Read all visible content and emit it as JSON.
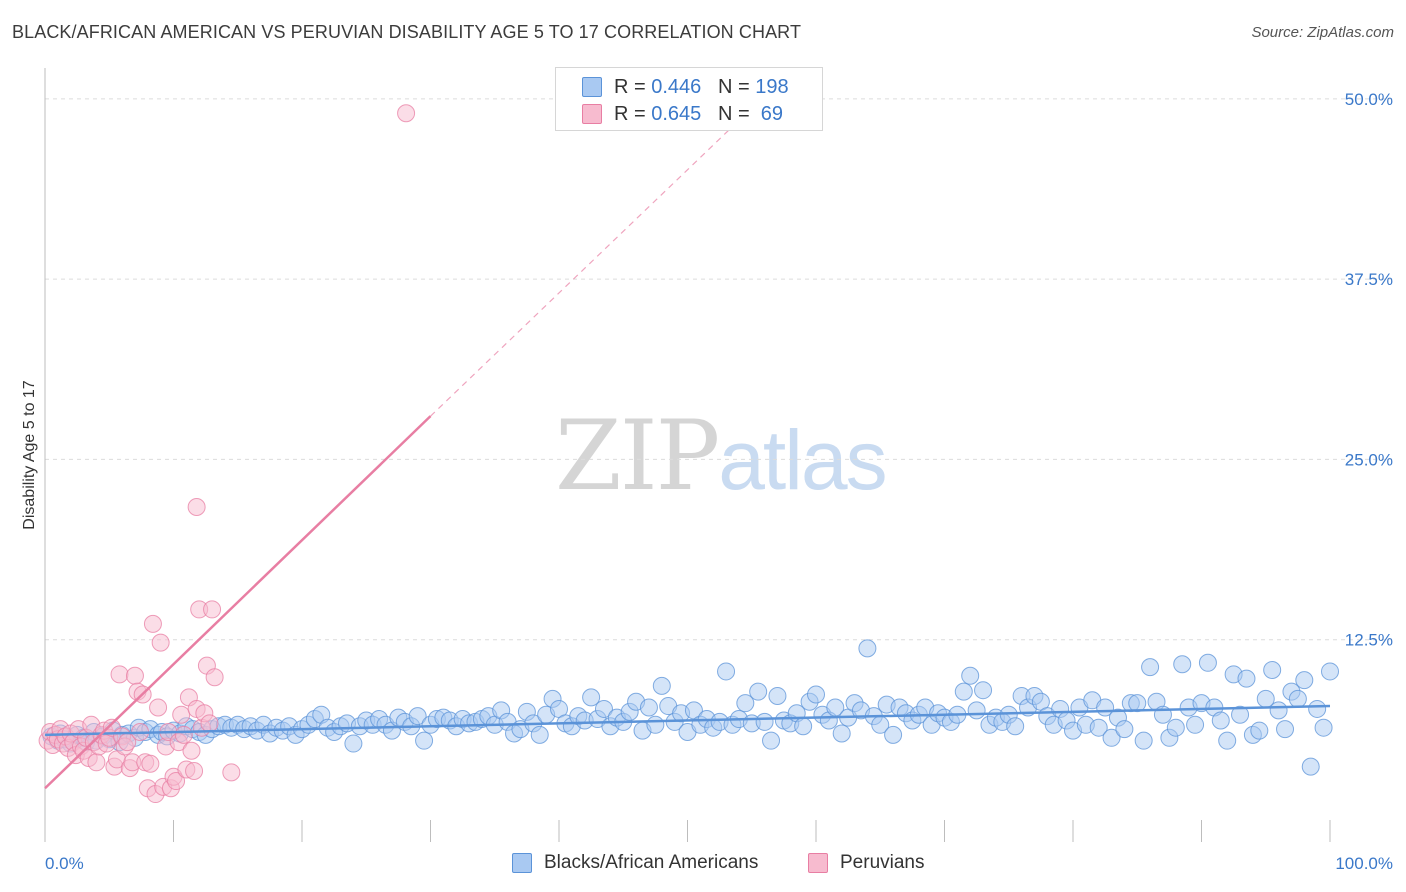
{
  "title": "BLACK/AFRICAN AMERICAN VS PERUVIAN DISABILITY AGE 5 TO 17 CORRELATION CHART",
  "source": "Source: ZipAtlas.com",
  "watermark": {
    "zip": "ZIP",
    "atlas": "atlas"
  },
  "legend": {
    "rows": [
      {
        "r_label": "R = ",
        "r_value": "0.446",
        "n_label": "N = ",
        "n_value": "198",
        "color": "#a9c9f2",
        "border": "#5b93d8"
      },
      {
        "r_label": "R = ",
        "r_value": "0.645",
        "n_label": "N = ",
        "n_value": " 69",
        "color": "#f7bbcf",
        "border": "#e87ea3"
      }
    ]
  },
  "bottom_legend": [
    {
      "label": "Blacks/African Americans",
      "color": "#a9c9f2",
      "border": "#5b93d8"
    },
    {
      "label": "Peruvians",
      "color": "#f7bbcf",
      "border": "#e87ea3"
    }
  ],
  "chart_data": {
    "type": "scatter",
    "title": "BLACK/AFRICAN AMERICAN VS PERUVIAN DISABILITY AGE 5 TO 17 CORRELATION CHART",
    "xlabel": "",
    "ylabel": "Disability Age 5 to 17",
    "xlim": [
      0,
      100
    ],
    "ylim": [
      0,
      52
    ],
    "x_tick_labels": [
      "0.0%",
      "100.0%"
    ],
    "y_ticks": [
      12.5,
      25.0,
      37.5,
      50.0
    ],
    "y_tick_labels": [
      "12.5%",
      "25.0%",
      "37.5%",
      "50.0%"
    ],
    "grid": true,
    "series": [
      {
        "name": "Blacks/African Americans",
        "color": "#5b93d8",
        "fill": "#a9c9f2",
        "trend": {
          "x": [
            0,
            100
          ],
          "y": [
            5.9,
            7.9
          ],
          "style": "solid"
        },
        "points": [
          [
            0.5,
            5.8
          ],
          [
            1,
            5.5
          ],
          [
            1.2,
            6.0
          ],
          [
            1.5,
            5.6
          ],
          [
            2,
            5.3
          ],
          [
            2.5,
            5.9
          ],
          [
            3,
            5.7
          ],
          [
            3.2,
            5.4
          ],
          [
            3.8,
            6.1
          ],
          [
            4,
            5.5
          ],
          [
            4.5,
            5.8
          ],
          [
            5,
            5.6
          ],
          [
            5.3,
            6.2
          ],
          [
            5.8,
            5.4
          ],
          [
            6,
            5.9
          ],
          [
            6.5,
            6.0
          ],
          [
            7,
            5.7
          ],
          [
            7.3,
            6.4
          ],
          [
            7.8,
            6.1
          ],
          [
            8.2,
            6.3
          ],
          [
            8.8,
            5.9
          ],
          [
            9.1,
            6.1
          ],
          [
            9.5,
            5.8
          ],
          [
            10,
            6.2
          ],
          [
            10.5,
            6.0
          ],
          [
            11,
            6.5
          ],
          [
            11.5,
            6.3
          ],
          [
            12,
            6.1
          ],
          [
            12.5,
            5.9
          ],
          [
            13,
            6.3
          ],
          [
            13.5,
            6.5
          ],
          [
            14,
            6.6
          ],
          [
            14.5,
            6.4
          ],
          [
            15,
            6.6
          ],
          [
            15.5,
            6.3
          ],
          [
            16,
            6.5
          ],
          [
            16.5,
            6.2
          ],
          [
            17,
            6.6
          ],
          [
            17.5,
            6.0
          ],
          [
            18,
            6.4
          ],
          [
            18.5,
            6.2
          ],
          [
            19,
            6.5
          ],
          [
            19.5,
            5.9
          ],
          [
            20,
            6.3
          ],
          [
            20.5,
            6.6
          ],
          [
            21,
            7.0
          ],
          [
            21.5,
            7.3
          ],
          [
            22,
            6.4
          ],
          [
            22.5,
            6.1
          ],
          [
            23,
            6.5
          ],
          [
            23.5,
            6.7
          ],
          [
            24,
            5.3
          ],
          [
            24.5,
            6.5
          ],
          [
            25,
            6.9
          ],
          [
            25.5,
            6.6
          ],
          [
            26,
            7.0
          ],
          [
            26.5,
            6.6
          ],
          [
            27,
            6.2
          ],
          [
            27.5,
            7.1
          ],
          [
            28,
            6.8
          ],
          [
            28.5,
            6.5
          ],
          [
            29,
            7.2
          ],
          [
            29.5,
            5.5
          ],
          [
            30,
            6.6
          ],
          [
            30.5,
            7.0
          ],
          [
            31,
            7.1
          ],
          [
            31.5,
            6.9
          ],
          [
            32,
            6.5
          ],
          [
            32.5,
            7.0
          ],
          [
            33,
            6.7
          ],
          [
            33.5,
            6.8
          ],
          [
            34,
            7.0
          ],
          [
            34.5,
            7.2
          ],
          [
            35,
            6.6
          ],
          [
            35.5,
            7.6
          ],
          [
            36,
            6.8
          ],
          [
            36.5,
            6.0
          ],
          [
            37,
            6.3
          ],
          [
            37.5,
            7.5
          ],
          [
            38,
            6.7
          ],
          [
            38.5,
            5.9
          ],
          [
            39,
            7.3
          ],
          [
            39.5,
            8.4
          ],
          [
            40,
            7.7
          ],
          [
            40.5,
            6.7
          ],
          [
            41,
            6.5
          ],
          [
            41.5,
            7.2
          ],
          [
            42,
            6.9
          ],
          [
            42.5,
            8.5
          ],
          [
            43,
            7.0
          ],
          [
            43.5,
            7.7
          ],
          [
            44,
            6.5
          ],
          [
            44.5,
            7.1
          ],
          [
            45,
            6.8
          ],
          [
            45.5,
            7.5
          ],
          [
            46,
            8.2
          ],
          [
            46.5,
            6.2
          ],
          [
            47,
            7.8
          ],
          [
            47.5,
            6.6
          ],
          [
            48,
            9.3
          ],
          [
            48.5,
            7.9
          ],
          [
            49,
            6.8
          ],
          [
            49.5,
            7.4
          ],
          [
            50,
            6.1
          ],
          [
            50.5,
            7.6
          ],
          [
            51,
            6.6
          ],
          [
            51.5,
            7.0
          ],
          [
            52,
            6.4
          ],
          [
            52.5,
            6.8
          ],
          [
            53,
            10.3
          ],
          [
            53.5,
            6.6
          ],
          [
            54,
            7.0
          ],
          [
            54.5,
            8.1
          ],
          [
            55,
            6.7
          ],
          [
            55.5,
            8.9
          ],
          [
            56,
            6.8
          ],
          [
            56.5,
            5.5
          ],
          [
            57,
            8.6
          ],
          [
            57.5,
            6.9
          ],
          [
            58,
            6.7
          ],
          [
            58.5,
            7.4
          ],
          [
            59,
            6.5
          ],
          [
            59.5,
            8.2
          ],
          [
            60,
            8.7
          ],
          [
            60.5,
            7.3
          ],
          [
            61,
            6.9
          ],
          [
            61.5,
            7.8
          ],
          [
            62,
            6.0
          ],
          [
            62.5,
            7.1
          ],
          [
            63,
            8.1
          ],
          [
            63.5,
            7.6
          ],
          [
            64,
            11.9
          ],
          [
            64.5,
            7.2
          ],
          [
            65,
            6.6
          ],
          [
            65.5,
            8.0
          ],
          [
            66,
            5.9
          ],
          [
            66.5,
            7.8
          ],
          [
            67,
            7.4
          ],
          [
            67.5,
            6.9
          ],
          [
            68,
            7.3
          ],
          [
            68.5,
            7.8
          ],
          [
            69,
            6.6
          ],
          [
            69.5,
            7.4
          ],
          [
            70,
            7.1
          ],
          [
            70.5,
            6.8
          ],
          [
            71,
            7.3
          ],
          [
            71.5,
            8.9
          ],
          [
            72,
            10.0
          ],
          [
            72.5,
            7.6
          ],
          [
            73,
            9.0
          ],
          [
            73.5,
            6.6
          ],
          [
            74,
            7.1
          ],
          [
            74.5,
            6.8
          ],
          [
            75,
            7.3
          ],
          [
            75.5,
            6.5
          ],
          [
            76,
            8.6
          ],
          [
            76.5,
            7.8
          ],
          [
            77,
            8.6
          ],
          [
            77.5,
            8.2
          ],
          [
            78,
            7.2
          ],
          [
            78.5,
            6.6
          ],
          [
            79,
            7.7
          ],
          [
            79.5,
            6.9
          ],
          [
            80,
            6.2
          ],
          [
            80.5,
            7.8
          ],
          [
            81,
            6.6
          ],
          [
            81.5,
            8.3
          ],
          [
            82,
            6.4
          ],
          [
            82.5,
            7.8
          ],
          [
            83,
            5.7
          ],
          [
            83.5,
            7.1
          ],
          [
            84,
            6.3
          ],
          [
            84.5,
            8.1
          ],
          [
            85,
            8.1
          ],
          [
            85.5,
            5.5
          ],
          [
            86,
            10.6
          ],
          [
            86.5,
            8.2
          ],
          [
            87,
            7.3
          ],
          [
            87.5,
            5.7
          ],
          [
            88,
            6.4
          ],
          [
            88.5,
            10.8
          ],
          [
            89,
            7.8
          ],
          [
            89.5,
            6.6
          ],
          [
            90,
            8.1
          ],
          [
            90.5,
            10.9
          ],
          [
            91,
            7.8
          ],
          [
            91.5,
            6.9
          ],
          [
            92,
            5.5
          ],
          [
            92.5,
            10.1
          ],
          [
            93,
            7.3
          ],
          [
            93.5,
            9.8
          ],
          [
            94,
            5.9
          ],
          [
            94.5,
            6.2
          ],
          [
            95,
            8.4
          ],
          [
            95.5,
            10.4
          ],
          [
            96,
            7.6
          ],
          [
            96.5,
            6.3
          ],
          [
            97,
            8.9
          ],
          [
            97.5,
            8.4
          ],
          [
            98,
            9.7
          ],
          [
            98.5,
            3.7
          ],
          [
            99,
            7.7
          ],
          [
            99.5,
            6.4
          ],
          [
            100,
            10.3
          ]
        ]
      },
      {
        "name": "Peruvians",
        "color": "#e87ea3",
        "fill": "#f7bbcf",
        "trend": {
          "x": [
            0,
            30
          ],
          "y": [
            2.2,
            28.0
          ],
          "style": "solid",
          "extend_to": [
            54,
            48.5
          ],
          "extend_style": "dashed"
        },
        "points": [
          [
            0.2,
            5.5
          ],
          [
            0.4,
            6.1
          ],
          [
            0.6,
            5.2
          ],
          [
            0.8,
            5.9
          ],
          [
            1,
            5.6
          ],
          [
            1.2,
            6.3
          ],
          [
            1.4,
            5.3
          ],
          [
            1.6,
            5.8
          ],
          [
            1.8,
            5.0
          ],
          [
            2,
            6.0
          ],
          [
            2.2,
            5.4
          ],
          [
            2.4,
            4.5
          ],
          [
            2.6,
            6.3
          ],
          [
            2.8,
            5.1
          ],
          [
            3,
            4.8
          ],
          [
            3.2,
            5.7
          ],
          [
            3.4,
            4.3
          ],
          [
            3.6,
            6.6
          ],
          [
            3.8,
            5.4
          ],
          [
            4,
            4.0
          ],
          [
            4.2,
            5.1
          ],
          [
            4.4,
            5.9
          ],
          [
            4.6,
            6.2
          ],
          [
            4.8,
            5.3
          ],
          [
            5,
            5.7
          ],
          [
            5.2,
            6.4
          ],
          [
            5.4,
            3.7
          ],
          [
            5.6,
            4.2
          ],
          [
            5.8,
            10.1
          ],
          [
            6,
            5.8
          ],
          [
            6.2,
            5.1
          ],
          [
            6.4,
            5.4
          ],
          [
            6.6,
            3.6
          ],
          [
            6.8,
            4.0
          ],
          [
            7,
            10.0
          ],
          [
            7.2,
            8.9
          ],
          [
            7.4,
            6.1
          ],
          [
            7.6,
            8.7
          ],
          [
            7.8,
            4.0
          ],
          [
            8,
            2.2
          ],
          [
            8.2,
            3.9
          ],
          [
            8.4,
            13.6
          ],
          [
            8.6,
            1.8
          ],
          [
            8.8,
            7.8
          ],
          [
            9,
            12.3
          ],
          [
            9.2,
            2.3
          ],
          [
            9.4,
            5.1
          ],
          [
            9.6,
            6.1
          ],
          [
            9.8,
            2.2
          ],
          [
            10,
            3.0
          ],
          [
            10.2,
            2.7
          ],
          [
            10.4,
            5.4
          ],
          [
            10.6,
            7.3
          ],
          [
            10.8,
            5.9
          ],
          [
            11,
            3.5
          ],
          [
            11.2,
            8.5
          ],
          [
            11.4,
            4.8
          ],
          [
            11.6,
            3.4
          ],
          [
            11.8,
            7.7
          ],
          [
            12,
            14.6
          ],
          [
            12.2,
            6.4
          ],
          [
            12.4,
            7.4
          ],
          [
            12.6,
            10.7
          ],
          [
            12.8,
            6.7
          ],
          [
            11.8,
            21.7
          ],
          [
            13,
            14.6
          ],
          [
            13.2,
            9.9
          ],
          [
            14.5,
            3.3
          ],
          [
            28.1,
            49.0
          ]
        ]
      }
    ]
  }
}
